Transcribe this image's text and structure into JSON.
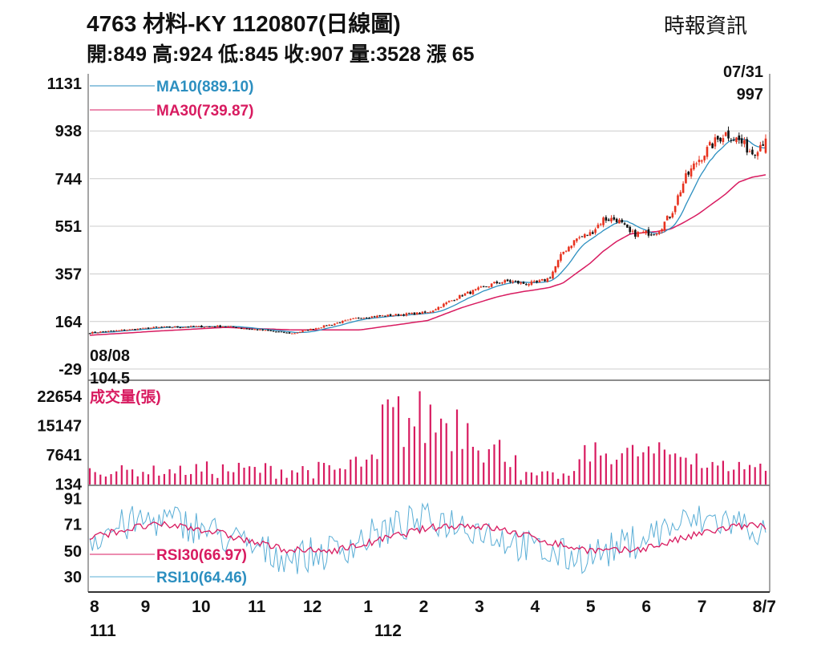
{
  "header": {
    "title": "4763  材料-KY 1120807(日線圖)",
    "source": "時報資訊",
    "ohlc": "開:849 高:924 低:845 收:907 量:3528 漲 65"
  },
  "colors": {
    "up": "#e8321e",
    "down": "#111111",
    "ma10": "#2c8fc0",
    "ma30": "#d81b60",
    "volume": "#d81b60",
    "rsi30": "#d81b60",
    "rsi10": "#5aaed6",
    "grid": "#cccccc"
  },
  "chart_data": [
    {
      "type": "candlestick",
      "title": "4763  材料-KY 1120807(日線圖)",
      "y_ticks": [
        "1131",
        "938",
        "744",
        "551",
        "357",
        "164",
        "-29"
      ],
      "ylim": [
        -29,
        1131
      ],
      "x_ticks": [
        "8",
        "9",
        "10",
        "11",
        "12",
        "1",
        "2",
        "3",
        "4",
        "5",
        "6",
        "7",
        "8/7"
      ],
      "year_labels": [
        "111",
        "112"
      ],
      "annotations": {
        "high_date": "07/31",
        "high_value": "997",
        "low_date": "08/08",
        "low_value": "104.5"
      },
      "series": [
        {
          "name": "MA10(889.10)",
          "last": 889.1
        },
        {
          "name": "MA30(739.87)",
          "last": 739.87
        }
      ],
      "anchors": {
        "close_x": [
          0,
          10,
          20,
          30,
          40,
          50,
          55,
          60,
          62,
          64,
          66,
          68,
          70,
          72,
          74,
          76,
          78,
          80,
          82,
          84,
          86,
          88,
          90,
          92,
          94,
          96,
          98,
          100
        ],
        "close_y": [
          118,
          140,
          145,
          115,
          180,
          200,
          270,
          320,
          328,
          318,
          320,
          340,
          445,
          500,
          520,
          580,
          580,
          520,
          522,
          530,
          600,
          740,
          820,
          880,
          930,
          900,
          850,
          907
        ],
        "ma30_y": [
          108,
          125,
          140,
          130,
          130,
          168,
          220,
          262,
          275,
          285,
          293,
          302,
          320,
          360,
          400,
          450,
          490,
          520,
          525,
          530,
          540,
          568,
          600,
          640,
          680,
          730,
          750,
          760
        ]
      },
      "last_candle": {
        "open": 849,
        "high": 924,
        "low": 845,
        "close": 907
      }
    },
    {
      "type": "bar",
      "title": "成交量(張)",
      "y_ticks": [
        "22654",
        "15147",
        "7641",
        "134"
      ],
      "ylim": [
        0,
        26000
      ],
      "last_value": 3528
    },
    {
      "type": "line",
      "y_ticks": [
        "91",
        "71",
        "50",
        "30"
      ],
      "ylim": [
        20,
        100
      ],
      "series": [
        {
          "name": "RSI30(66.97)",
          "last": 66.97
        },
        {
          "name": "RSI10(64.46)",
          "last": 64.46
        }
      ]
    }
  ]
}
